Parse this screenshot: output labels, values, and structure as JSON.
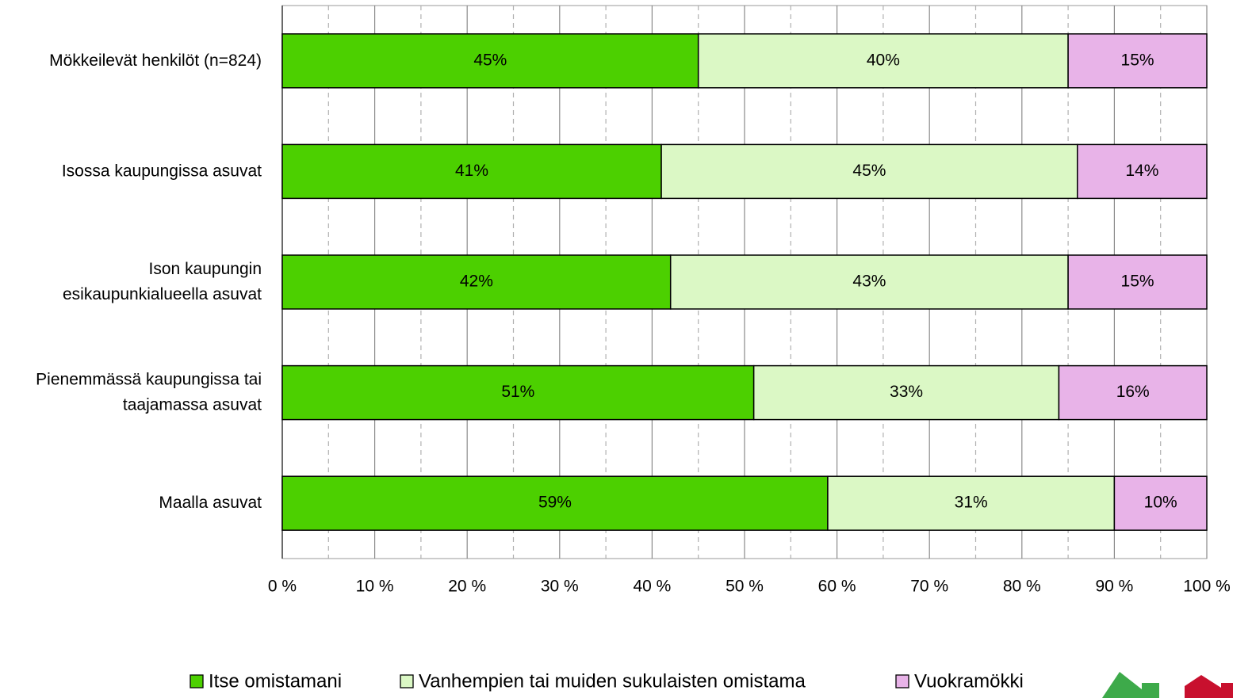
{
  "chart_data": {
    "type": "stacked_barh",
    "categories": [
      "Mökkeilevät henkilöt (n=824)",
      "Isossa kaupungissa asuvat",
      "Ison kaupungin\nesikaupunkialueella asuvat",
      "Pienemmässä kaupungissa tai\ntaajamassa asuvat",
      "Maalla asuvat"
    ],
    "series": [
      {
        "name": "Itse omistamani",
        "color": "#4cd000",
        "values": [
          45,
          41,
          42,
          51,
          59
        ],
        "value_labels": [
          "45%",
          "41%",
          "42%",
          "51%",
          "59%"
        ]
      },
      {
        "name": "Vanhempien tai muiden sukulaisten omistama",
        "color": "#dbf8c5",
        "values": [
          40,
          45,
          43,
          33,
          31
        ],
        "value_labels": [
          "40%",
          "45%",
          "43%",
          "33%",
          "31%"
        ]
      },
      {
        "name": "Vuokramökki",
        "color": "#e8b3e8",
        "values": [
          15,
          14,
          15,
          16,
          10
        ],
        "value_labels": [
          "15%",
          "14%",
          "15%",
          "16%",
          "10%"
        ]
      }
    ],
    "xlim": [
      0,
      100
    ],
    "xticks": [
      {
        "value": 0,
        "label": "0 %"
      },
      {
        "value": 10,
        "label": "10 %"
      },
      {
        "value": 20,
        "label": "20 %"
      },
      {
        "value": 30,
        "label": "30 %"
      },
      {
        "value": 40,
        "label": "40 %"
      },
      {
        "value": 50,
        "label": "50 %"
      },
      {
        "value": 60,
        "label": "60 %"
      },
      {
        "value": 70,
        "label": "70 %"
      },
      {
        "value": 80,
        "label": "80 %"
      },
      {
        "value": 90,
        "label": "90 %"
      },
      {
        "value": 100,
        "label": "100 %"
      }
    ],
    "minor_xticks": [
      5,
      15,
      25,
      35,
      45,
      55,
      65,
      75,
      85,
      95
    ],
    "grid": true,
    "legend": "bottom"
  }
}
